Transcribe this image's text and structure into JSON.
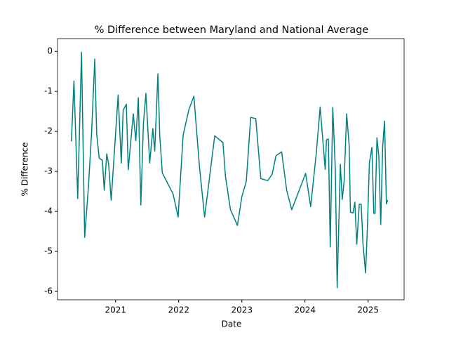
{
  "chart_data": {
    "type": "line",
    "title": "% Difference between Maryland and National Average",
    "x_label": "Date",
    "y_label": "% Difference",
    "x": [
      2020.3,
      2020.34,
      2020.4,
      2020.46,
      2020.51,
      2020.57,
      2020.62,
      2020.67,
      2020.7,
      2020.74,
      2020.79,
      2020.82,
      2020.86,
      2020.89,
      2020.93,
      2021.04,
      2021.09,
      2021.12,
      2021.17,
      2021.2,
      2021.28,
      2021.32,
      2021.36,
      2021.4,
      2021.44,
      2021.48,
      2021.54,
      2021.59,
      2021.62,
      2021.67,
      2021.7,
      2021.74,
      2021.91,
      2021.99,
      2022.07,
      2022.16,
      2022.24,
      2022.33,
      2022.41,
      2022.57,
      2022.7,
      2022.74,
      2022.82,
      2022.93,
      2023.0,
      2023.07,
      2023.14,
      2023.22,
      2023.3,
      2023.41,
      2023.48,
      2023.54,
      2023.63,
      2023.71,
      2023.79,
      2024.01,
      2024.09,
      2024.18,
      2024.24,
      2024.32,
      2024.34,
      2024.37,
      2024.4,
      2024.44,
      2024.48,
      2024.51,
      2024.56,
      2024.59,
      2024.62,
      2024.66,
      2024.7,
      2024.72,
      2024.76,
      2024.79,
      2024.82,
      2024.86,
      2024.89,
      2024.92,
      2024.96,
      2024.99,
      2025.02,
      2025.06,
      2025.09,
      2025.11,
      2025.14,
      2025.17,
      2025.2,
      2025.23,
      2025.26,
      2025.29,
      2025.31
    ],
    "series": [
      {
        "name": "% Difference",
        "color": "#008080",
        "values": [
          -2.25,
          -0.74,
          -3.68,
          -0.02,
          -4.65,
          -3.37,
          -2.02,
          -0.19,
          -2.05,
          -2.67,
          -2.72,
          -3.47,
          -2.56,
          -2.82,
          -3.72,
          -1.09,
          -2.79,
          -1.47,
          -1.32,
          -2.96,
          -1.56,
          -2.23,
          -1.16,
          -3.84,
          -1.82,
          -1.05,
          -2.79,
          -1.93,
          -2.49,
          -0.56,
          -2.12,
          -3.04,
          -3.56,
          -4.14,
          -2.09,
          -1.46,
          -1.12,
          -2.91,
          -4.14,
          -2.11,
          -2.28,
          -3.12,
          -3.96,
          -4.35,
          -3.63,
          -3.25,
          -1.65,
          -1.68,
          -3.18,
          -3.23,
          -3.07,
          -2.61,
          -2.51,
          -3.47,
          -3.96,
          -3.05,
          -3.88,
          -2.53,
          -1.39,
          -2.95,
          -2.21,
          -2.19,
          -4.89,
          -1.4,
          -2.91,
          -5.91,
          -2.82,
          -3.7,
          -3.25,
          -1.56,
          -2.35,
          -4.02,
          -4.04,
          -3.77,
          -4.82,
          -3.82,
          -3.82,
          -4.84,
          -5.54,
          -4.33,
          -2.79,
          -2.4,
          -4.05,
          -4.05,
          -2.16,
          -2.63,
          -4.33,
          -2.4,
          -1.74,
          -3.81,
          -3.72
        ]
      }
    ],
    "xlim": [
      2020.08,
      2025.57
    ],
    "xticks": [
      2021,
      2022,
      2023,
      2024,
      2025
    ],
    "ylim": [
      -6.21,
      0.32
    ],
    "yticks": [
      -6,
      -5,
      -4,
      -3,
      -2,
      -1,
      0
    ]
  }
}
